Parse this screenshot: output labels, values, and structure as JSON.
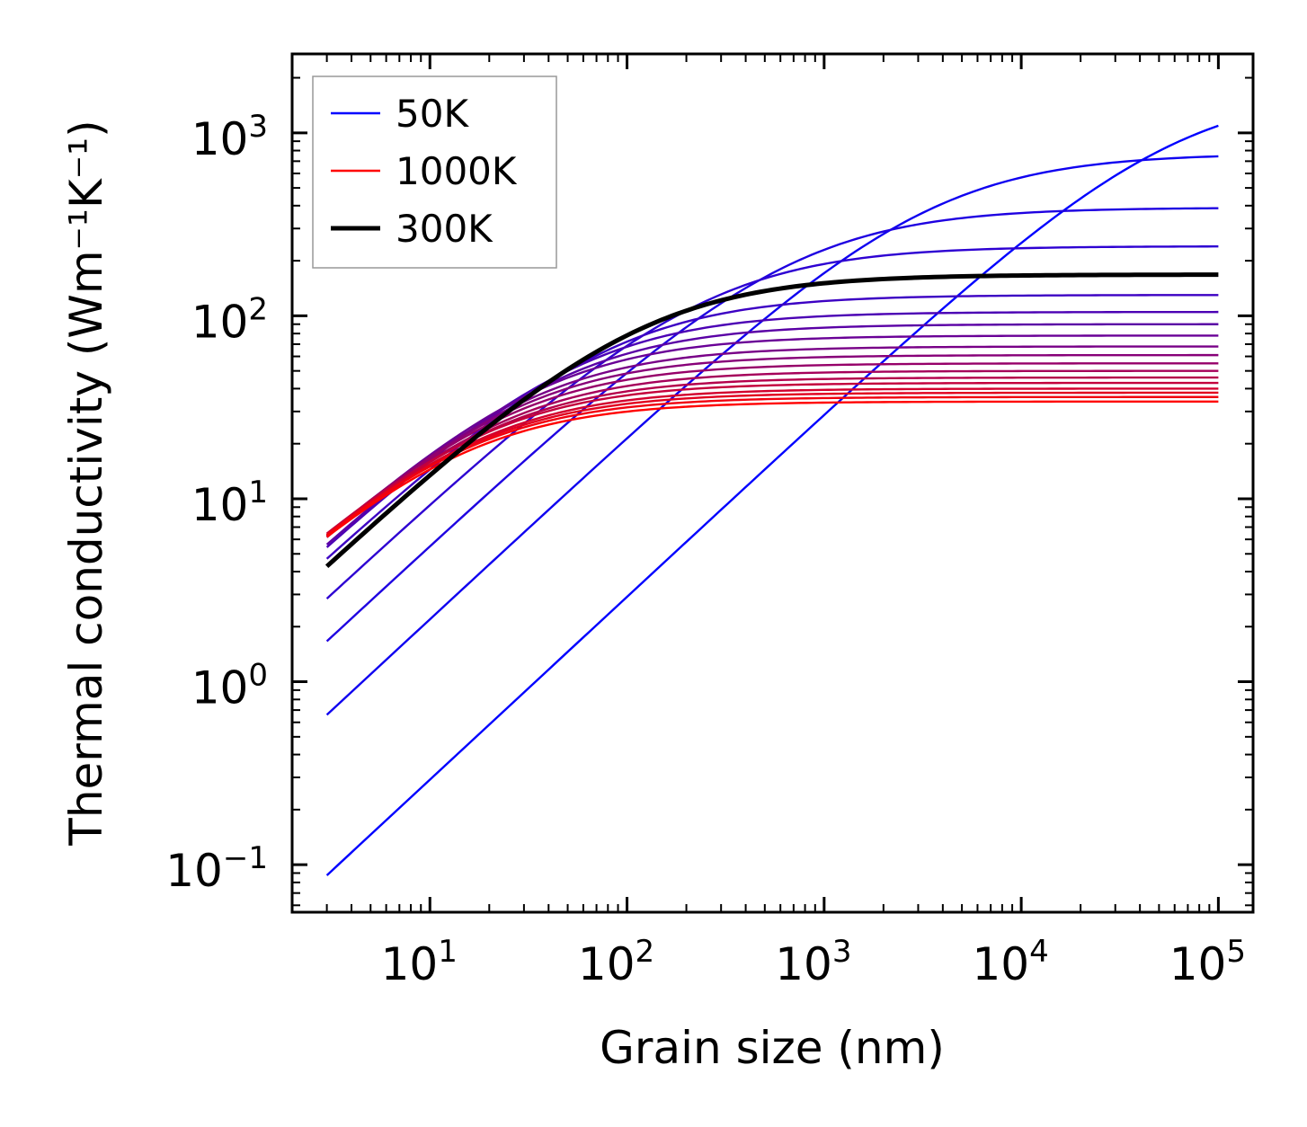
{
  "chart_data": {
    "type": "line",
    "xscale": "log",
    "yscale": "log",
    "xlabel": "Grain size (nm)",
    "ylabel": "Thermal conductivity (Wm⁻¹K⁻¹)",
    "xlim": [
      2,
      150000
    ],
    "ylim": [
      0.055,
      2700
    ],
    "x_ticks": [
      {
        "value": 10,
        "base": "10",
        "exp": "1"
      },
      {
        "value": 100,
        "base": "10",
        "exp": "2"
      },
      {
        "value": 1000,
        "base": "10",
        "exp": "3"
      },
      {
        "value": 10000,
        "base": "10",
        "exp": "4"
      },
      {
        "value": 100000,
        "base": "10",
        "exp": "5"
      }
    ],
    "y_ticks": [
      {
        "value": 0.1,
        "base": "10",
        "exp": "−1"
      },
      {
        "value": 1,
        "base": "10",
        "exp": "0"
      },
      {
        "value": 10,
        "base": "10",
        "exp": "1"
      },
      {
        "value": 100,
        "base": "10",
        "exp": "2"
      },
      {
        "value": 1000,
        "base": "10",
        "exp": "3"
      }
    ],
    "model": "k(L) = k_inf * (L/L0) / (1 + L/L0)",
    "x_range": [
      3,
      100000
    ],
    "gradient_start_color": "#0000ff",
    "gradient_end_color": "#ff0000",
    "series": [
      {
        "name": "50K",
        "k_inf": 1750,
        "L0": 60000
      },
      {
        "name": "",
        "k_inf": 770,
        "L0": 3500
      },
      {
        "name": "",
        "k_inf": 390,
        "L0": 700
      },
      {
        "name": "",
        "k_inf": 240,
        "L0": 250
      },
      {
        "name": "",
        "k_inf": 130,
        "L0": 80
      },
      {
        "name": "",
        "k_inf": 105,
        "L0": 55
      },
      {
        "name": "",
        "k_inf": 90,
        "L0": 45
      },
      {
        "name": "",
        "k_inf": 78,
        "L0": 35
      },
      {
        "name": "",
        "k_inf": 68,
        "L0": 30
      },
      {
        "name": "",
        "k_inf": 61,
        "L0": 26
      },
      {
        "name": "",
        "k_inf": 55,
        "L0": 23
      },
      {
        "name": "",
        "k_inf": 50,
        "L0": 21
      },
      {
        "name": "",
        "k_inf": 46,
        "L0": 19
      },
      {
        "name": "",
        "k_inf": 43,
        "L0": 17
      },
      {
        "name": "",
        "k_inf": 40,
        "L0": 16
      },
      {
        "name": "",
        "k_inf": 38,
        "L0": 15
      },
      {
        "name": "",
        "k_inf": 36,
        "L0": 14
      },
      {
        "name": "1000K",
        "k_inf": 34,
        "L0": 13.5
      }
    ],
    "highlight": {
      "name": "300K",
      "k_inf": 168,
      "L0": 115,
      "color": "#000000"
    },
    "legend": [
      {
        "label": "50K",
        "color": "#0000ff",
        "bold": false
      },
      {
        "label": "1000K",
        "color": "#ff0000",
        "bold": false
      },
      {
        "label": "300K",
        "color": "#000000",
        "bold": true
      }
    ],
    "legend_position": "top-left"
  }
}
